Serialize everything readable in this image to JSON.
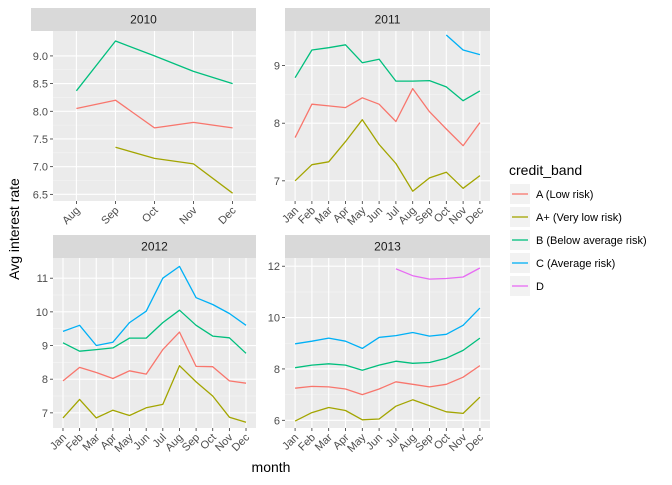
{
  "chart_data": {
    "type": "line",
    "faceted_by": "year",
    "xlabel": "month",
    "ylabel": "Avg interest rate",
    "legend_title": "credit_band",
    "legend_position": "right",
    "grid": true,
    "month_labels": [
      "Jan",
      "Feb",
      "Mar",
      "Apr",
      "May",
      "Jun",
      "Jul",
      "Aug",
      "Sep",
      "Oct",
      "Nov",
      "Dec"
    ],
    "legend": [
      {
        "key": "A",
        "label": "A (Low risk)",
        "color": "#F8766D"
      },
      {
        "key": "A+",
        "label": "A+ (Very low risk)",
        "color": "#A3A500"
      },
      {
        "key": "B",
        "label": "B (Below average risk)",
        "color": "#00BF7D"
      },
      {
        "key": "C",
        "label": "C (Average risk)",
        "color": "#00B0F6"
      },
      {
        "key": "D",
        "label": "D",
        "color": "#E76BF3"
      }
    ],
    "panels": [
      {
        "title": "2010",
        "x_months": [
          8,
          9,
          10,
          11,
          12
        ],
        "ylim": [
          6.38,
          9.45
        ],
        "yticks": [
          6.5,
          7.0,
          7.5,
          8.0,
          8.5,
          9.0
        ],
        "ytick_labels": [
          "6.5",
          "7.0",
          "7.5",
          "8.0",
          "8.5",
          "9.0"
        ],
        "series": [
          {
            "band": "A",
            "x": [
              8,
              9,
              10,
              11,
              12
            ],
            "y": [
              8.05,
              8.2,
              7.7,
              7.8,
              7.7
            ]
          },
          {
            "band": "A+",
            "x": [
              9,
              10,
              11,
              12
            ],
            "y": [
              7.35,
              7.15,
              7.05,
              6.52
            ]
          },
          {
            "band": "B",
            "x": [
              8,
              9,
              10,
              11,
              12
            ],
            "y": [
              8.37,
              9.27,
              9.0,
              8.72,
              8.5
            ]
          }
        ]
      },
      {
        "title": "2011",
        "x_months": [
          1,
          2,
          3,
          4,
          5,
          6,
          7,
          8,
          9,
          10,
          11,
          12
        ],
        "ylim": [
          6.65,
          9.6
        ],
        "yticks": [
          7,
          8,
          9
        ],
        "ytick_labels": [
          "7",
          "8",
          "9"
        ],
        "series": [
          {
            "band": "A",
            "x": [
              1,
              2,
              3,
              4,
              5,
              6,
              7,
              8,
              9,
              10,
              11,
              12
            ],
            "y": [
              7.75,
              8.33,
              8.3,
              8.27,
              8.44,
              8.33,
              8.03,
              8.6,
              8.2,
              7.9,
              7.61,
              8.01
            ]
          },
          {
            "band": "A+",
            "x": [
              1,
              2,
              3,
              4,
              5,
              6,
              7,
              8,
              9,
              10,
              11,
              12
            ],
            "y": [
              7.0,
              7.28,
              7.33,
              7.68,
              8.06,
              7.63,
              7.3,
              6.82,
              7.05,
              7.15,
              6.87,
              7.09
            ]
          },
          {
            "band": "B",
            "x": [
              1,
              2,
              3,
              4,
              5,
              6,
              7,
              8,
              9,
              10,
              11,
              12
            ],
            "y": [
              8.79,
              9.27,
              9.31,
              9.36,
              9.05,
              9.11,
              8.73,
              8.73,
              8.74,
              8.63,
              8.39,
              8.56
            ]
          },
          {
            "band": "C",
            "x": [
              10,
              11,
              12
            ],
            "y": [
              9.53,
              9.27,
              9.19
            ]
          }
        ]
      },
      {
        "title": "2012",
        "x_months": [
          1,
          2,
          3,
          4,
          5,
          6,
          7,
          8,
          9,
          10,
          11,
          12
        ],
        "ylim": [
          6.55,
          11.6
        ],
        "yticks": [
          7,
          8,
          9,
          10,
          11
        ],
        "ytick_labels": [
          "7",
          "8",
          "9",
          "10",
          "11"
        ],
        "series": [
          {
            "band": "A",
            "x": [
              1,
              2,
              3,
              4,
              5,
              6,
              7,
              8,
              9,
              10,
              11,
              12
            ],
            "y": [
              7.95,
              8.35,
              8.2,
              8.02,
              8.25,
              8.15,
              8.88,
              9.4,
              8.38,
              8.37,
              7.95,
              7.88
            ]
          },
          {
            "band": "A+",
            "x": [
              1,
              2,
              3,
              4,
              5,
              6,
              7,
              8,
              9,
              10,
              11,
              12
            ],
            "y": [
              6.85,
              7.4,
              6.85,
              7.08,
              6.92,
              7.15,
              7.25,
              8.4,
              7.92,
              7.5,
              6.87,
              6.72
            ]
          },
          {
            "band": "B",
            "x": [
              1,
              2,
              3,
              4,
              5,
              6,
              7,
              8,
              9,
              10,
              11,
              12
            ],
            "y": [
              9.08,
              8.83,
              8.88,
              8.93,
              9.22,
              9.22,
              9.68,
              10.05,
              9.6,
              9.28,
              9.23,
              8.77
            ]
          },
          {
            "band": "C",
            "x": [
              1,
              2,
              3,
              4,
              5,
              6,
              7,
              8,
              9,
              10,
              11,
              12
            ],
            "y": [
              9.42,
              9.6,
              9.0,
              9.1,
              9.68,
              10.02,
              11.0,
              11.35,
              10.42,
              10.22,
              9.95,
              9.6
            ]
          }
        ]
      },
      {
        "title": "2013",
        "x_months": [
          1,
          2,
          3,
          4,
          5,
          6,
          7,
          8,
          9,
          10,
          11,
          12
        ],
        "ylim": [
          5.7,
          12.32
        ],
        "yticks": [
          6,
          8,
          10,
          12
        ],
        "ytick_labels": [
          "6",
          "8",
          "10",
          "12"
        ],
        "series": [
          {
            "band": "A",
            "x": [
              1,
              2,
              3,
              4,
              5,
              6,
              7,
              8,
              9,
              10,
              11,
              12
            ],
            "y": [
              7.25,
              7.32,
              7.3,
              7.22,
              7.0,
              7.22,
              7.5,
              7.4,
              7.3,
              7.4,
              7.68,
              8.13
            ]
          },
          {
            "band": "A+",
            "x": [
              1,
              2,
              3,
              4,
              5,
              6,
              7,
              8,
              9,
              10,
              11,
              12
            ],
            "y": [
              5.97,
              6.3,
              6.5,
              6.38,
              6.02,
              6.05,
              6.55,
              6.8,
              6.57,
              6.33,
              6.27,
              6.9
            ]
          },
          {
            "band": "B",
            "x": [
              1,
              2,
              3,
              4,
              5,
              6,
              7,
              8,
              9,
              10,
              11,
              12
            ],
            "y": [
              8.05,
              8.15,
              8.2,
              8.15,
              7.95,
              8.15,
              8.3,
              8.22,
              8.25,
              8.42,
              8.72,
              9.2
            ]
          },
          {
            "band": "C",
            "x": [
              1,
              2,
              3,
              4,
              5,
              6,
              7,
              8,
              9,
              10,
              11,
              12
            ],
            "y": [
              8.98,
              9.08,
              9.2,
              9.08,
              8.8,
              9.23,
              9.3,
              9.42,
              9.28,
              9.35,
              9.7,
              10.37
            ]
          },
          {
            "band": "D",
            "x": [
              7,
              8,
              9,
              10,
              11,
              12
            ],
            "y": [
              11.9,
              11.63,
              11.5,
              11.52,
              11.58,
              11.93
            ]
          }
        ]
      }
    ]
  }
}
